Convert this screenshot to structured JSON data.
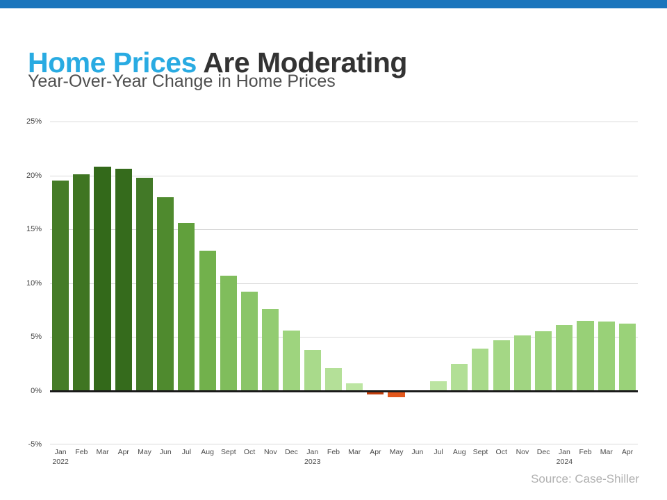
{
  "header": {
    "title_highlight": "Home Prices",
    "title_rest": " Are Moderating",
    "subtitle": "Year-Over-Year Change in Home Prices"
  },
  "footer": {
    "source": "Source: Case-Shiller"
  },
  "colors": {
    "top_bar": "#1b75bc",
    "title_highlight": "#29abe2",
    "title_rest": "#333333",
    "subtitle": "#4f4f4f",
    "gridline": "#d9d9d9",
    "zero_axis": "#1a1a1a",
    "axis_label": "#404040",
    "source_text": "#b0b0b0",
    "dark_green": "#33691a",
    "light_green": "#bce5a2",
    "negative_orange": "#e2571c"
  },
  "chart_data": {
    "type": "bar",
    "title": "Year-Over-Year Change in Home Prices",
    "categories": [
      "Jan",
      "Feb",
      "Mar",
      "Apr",
      "May",
      "Jun",
      "Jul",
      "Aug",
      "Sept",
      "Oct",
      "Nov",
      "Dec",
      "Jan",
      "Feb",
      "Mar",
      "Apr",
      "May",
      "Jun",
      "Jul",
      "Aug",
      "Sept",
      "Oct",
      "Nov",
      "Dec",
      "Jan",
      "Feb",
      "Mar",
      "Apr"
    ],
    "year_labels": {
      "0": "2022",
      "12": "2023",
      "24": "2024"
    },
    "values": [
      19.5,
      20.1,
      20.8,
      20.6,
      19.8,
      18.0,
      15.6,
      13.0,
      10.7,
      9.2,
      7.6,
      5.6,
      3.8,
      2.1,
      0.7,
      -0.2,
      -0.5,
      0.0,
      0.9,
      2.5,
      3.9,
      4.7,
      5.1,
      5.5,
      6.1,
      6.5,
      6.4,
      6.2
    ],
    "bar_colors": [
      "#457c27",
      "#3f7522",
      "#33691a",
      "#356b1c",
      "#427927",
      "#4f8a2e",
      "#61a03c",
      "#72b14c",
      "#80bd5c",
      "#8ac568",
      "#93cc72",
      "#9ed47e",
      "#a9da8b",
      "#b4e098",
      "#bce5a2",
      "#c23e0c",
      "#e2571c",
      "#bce5a2",
      "#bbe4a1",
      "#b2df96",
      "#a9da8b",
      "#a4d785",
      "#a1d582",
      "#9ed47e",
      "#9bd27a",
      "#98d077",
      "#99d178",
      "#9ad279"
    ],
    "ylim": [
      -5,
      25
    ],
    "yticks": [
      25,
      20,
      15,
      10,
      5,
      0,
      -5
    ],
    "ytick_suffix": "%",
    "grid": true,
    "legend": false,
    "xlabel": "",
    "ylabel": ""
  }
}
